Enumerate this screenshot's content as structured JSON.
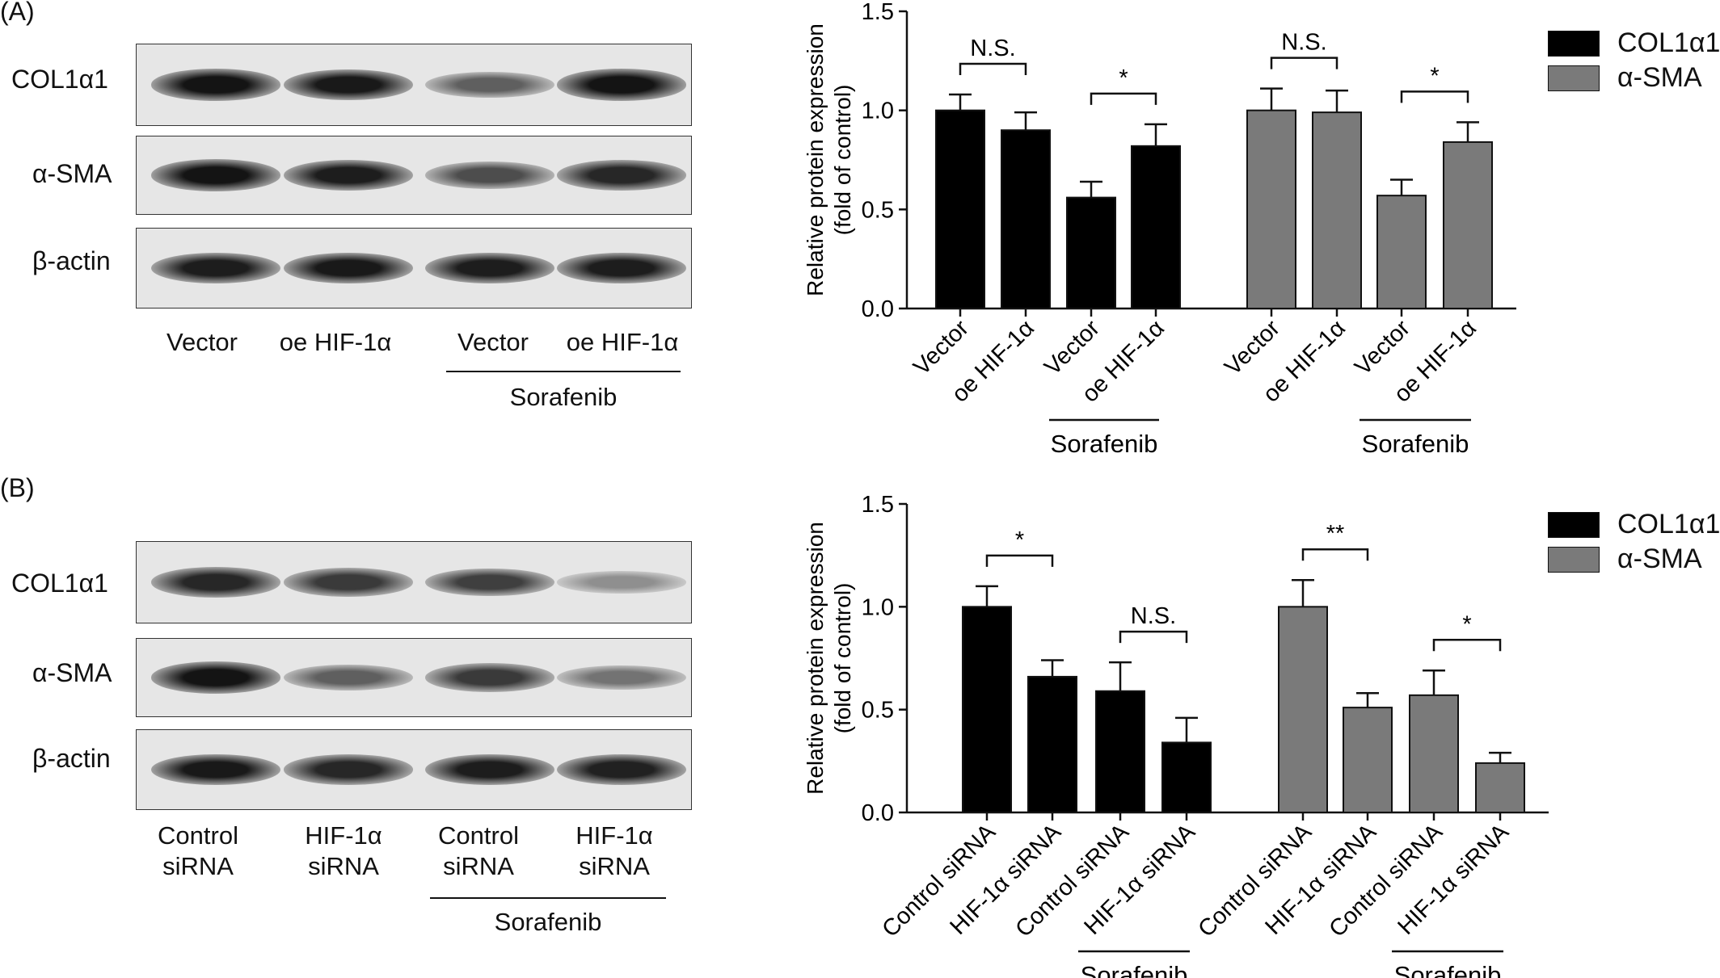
{
  "panels": [
    {
      "letter": "(A)",
      "blot": {
        "rows": [
          "COL1α1",
          "α-SMA",
          "β-actin"
        ],
        "lanes": [
          {
            "line1": "Vector",
            "line2": ""
          },
          {
            "line1": "oe HIF-1α",
            "line2": ""
          },
          {
            "line1": "Vector",
            "line2": ""
          },
          {
            "line1": "oe HIF-1α",
            "line2": ""
          }
        ],
        "group_label": "Sorafenib",
        "band_intensity": [
          [
            0.95,
            0.92,
            0.55,
            0.95
          ],
          [
            0.95,
            0.9,
            0.65,
            0.85
          ],
          [
            0.9,
            0.92,
            0.9,
            0.9
          ]
        ]
      }
    },
    {
      "letter": "(B)",
      "blot": {
        "rows": [
          "COL1α1",
          "α-SMA",
          "β-actin"
        ],
        "lanes": [
          {
            "line1": "Control",
            "line2": "siRNA"
          },
          {
            "line1": "HIF-1α",
            "line2": "siRNA"
          },
          {
            "line1": "Control",
            "line2": "siRNA"
          },
          {
            "line1": "HIF-1α",
            "line2": "siRNA"
          }
        ],
        "group_label": "Sorafenib",
        "band_intensity": [
          [
            0.85,
            0.75,
            0.72,
            0.3
          ],
          [
            0.95,
            0.55,
            0.75,
            0.45
          ],
          [
            0.92,
            0.85,
            0.9,
            0.88
          ]
        ]
      }
    }
  ],
  "chart_data": [
    {
      "type": "bar",
      "ylabel": "Relative protein expression",
      "ylabel2": "(fold of control)",
      "ylim": [
        0,
        1.5
      ],
      "yticks": [
        "0.0",
        "0.5",
        "1.0",
        "1.5"
      ],
      "categories": [
        "Vector",
        "oe HIF-1α",
        "Vector",
        "oe HIF-1α"
      ],
      "group_label": "Sorafenib",
      "legend": [
        "COL1α1",
        "α-SMA"
      ],
      "colors": {
        "COL1α1": "#000000",
        "α-SMA": "#7a7a7a"
      },
      "series": [
        {
          "name": "COL1α1",
          "values": [
            1.0,
            0.9,
            0.56,
            0.82
          ],
          "errors": [
            0.08,
            0.09,
            0.08,
            0.11
          ],
          "significance": [
            {
              "pair": [
                0,
                1
              ],
              "label": "N.S."
            },
            {
              "pair": [
                2,
                3
              ],
              "label": "*"
            }
          ]
        },
        {
          "name": "α-SMA",
          "values": [
            1.0,
            0.99,
            0.57,
            0.84
          ],
          "errors": [
            0.11,
            0.11,
            0.08,
            0.1
          ],
          "significance": [
            {
              "pair": [
                0,
                1
              ],
              "label": "N.S."
            },
            {
              "pair": [
                2,
                3
              ],
              "label": "*"
            }
          ]
        }
      ]
    },
    {
      "type": "bar",
      "ylabel": "Relative protein expression",
      "ylabel2": "(fold of control)",
      "ylim": [
        0,
        1.5
      ],
      "yticks": [
        "0.0",
        "0.5",
        "1.0",
        "1.5"
      ],
      "categories": [
        "Control siRNA",
        "HIF-1α siRNA",
        "Control siRNA",
        "HIF-1α siRNA"
      ],
      "group_label": "Sorafenib",
      "legend": [
        "COL1α1",
        "α-SMA"
      ],
      "colors": {
        "COL1α1": "#000000",
        "α-SMA": "#7a7a7a"
      },
      "series": [
        {
          "name": "COL1α1",
          "values": [
            1.0,
            0.66,
            0.59,
            0.34
          ],
          "errors": [
            0.1,
            0.08,
            0.14,
            0.12
          ],
          "significance": [
            {
              "pair": [
                0,
                1
              ],
              "label": "*"
            },
            {
              "pair": [
                2,
                3
              ],
              "label": "N.S."
            }
          ]
        },
        {
          "name": "α-SMA",
          "values": [
            1.0,
            0.51,
            0.57,
            0.24
          ],
          "errors": [
            0.13,
            0.07,
            0.12,
            0.05
          ],
          "significance": [
            {
              "pair": [
                0,
                1
              ],
              "label": "**"
            },
            {
              "pair": [
                2,
                3
              ],
              "label": "*"
            }
          ]
        }
      ]
    }
  ]
}
